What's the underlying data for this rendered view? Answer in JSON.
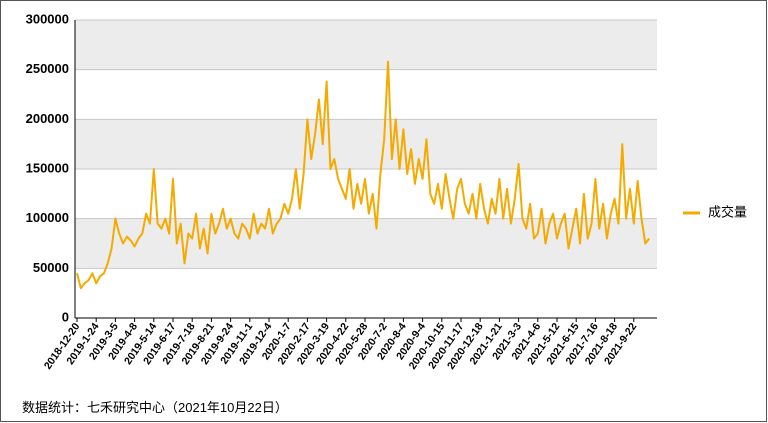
{
  "chart_data": {
    "type": "line",
    "categories": [
      "2018-12-20",
      null,
      null,
      null,
      null,
      "2019-1-24",
      null,
      null,
      null,
      null,
      "2019-3-5",
      null,
      null,
      null,
      null,
      "2019-4-8",
      null,
      null,
      null,
      null,
      "2019-5-14",
      null,
      null,
      null,
      null,
      "2019-6-17",
      null,
      null,
      null,
      null,
      "2019-7-18",
      null,
      null,
      null,
      null,
      "2019-8-21",
      null,
      null,
      null,
      null,
      "2019-9-24",
      null,
      null,
      null,
      null,
      "2019-11-1",
      null,
      null,
      null,
      null,
      "2019-12-4",
      null,
      null,
      null,
      null,
      "2020-1-7",
      null,
      null,
      null,
      null,
      "2020-2-17",
      null,
      null,
      null,
      null,
      "2020-3-19",
      null,
      null,
      null,
      null,
      "2020-4-22",
      null,
      null,
      null,
      null,
      "2020-5-28",
      null,
      null,
      null,
      null,
      "2020-7-2",
      null,
      null,
      null,
      null,
      "2020-8-4",
      null,
      null,
      null,
      null,
      "2020-9-4",
      null,
      null,
      null,
      null,
      "2020-10-15",
      null,
      null,
      null,
      null,
      "2020-11-17",
      null,
      null,
      null,
      null,
      "2020-12-18",
      null,
      null,
      null,
      null,
      "2021-1-21",
      null,
      null,
      null,
      null,
      "2021-3-3",
      null,
      null,
      null,
      null,
      "2021-4-6",
      null,
      null,
      null,
      null,
      "2021-5-12",
      null,
      null,
      null,
      null,
      "2021-6-15",
      null,
      null,
      null,
      null,
      "2021-7-16",
      null,
      null,
      null,
      null,
      "2021-8-18",
      null,
      null,
      null,
      null,
      "2021-9-22",
      null,
      null,
      null,
      null
    ],
    "series": [
      {
        "name": "成交量",
        "color": "#f5aa00",
        "values": [
          45000,
          30000,
          35000,
          38000,
          45000,
          35000,
          42000,
          45000,
          55000,
          70000,
          100000,
          85000,
          75000,
          82000,
          78000,
          72000,
          80000,
          85000,
          105000,
          95000,
          150000,
          95000,
          90000,
          100000,
          85000,
          140000,
          75000,
          95000,
          55000,
          85000,
          80000,
          105000,
          70000,
          90000,
          65000,
          105000,
          85000,
          95000,
          110000,
          90000,
          100000,
          85000,
          80000,
          95000,
          90000,
          80000,
          105000,
          85000,
          95000,
          90000,
          110000,
          85000,
          95000,
          100000,
          115000,
          105000,
          120000,
          150000,
          110000,
          145000,
          200000,
          160000,
          185000,
          220000,
          175000,
          238000,
          150000,
          160000,
          140000,
          130000,
          120000,
          150000,
          110000,
          135000,
          115000,
          140000,
          105000,
          125000,
          90000,
          145000,
          180000,
          258000,
          160000,
          200000,
          150000,
          190000,
          145000,
          170000,
          135000,
          160000,
          140000,
          180000,
          125000,
          115000,
          135000,
          110000,
          145000,
          120000,
          100000,
          130000,
          140000,
          115000,
          105000,
          125000,
          100000,
          135000,
          110000,
          95000,
          120000,
          105000,
          140000,
          100000,
          130000,
          95000,
          120000,
          155000,
          100000,
          90000,
          115000,
          80000,
          85000,
          110000,
          75000,
          95000,
          105000,
          80000,
          95000,
          105000,
          70000,
          90000,
          110000,
          75000,
          125000,
          80000,
          95000,
          140000,
          90000,
          115000,
          80000,
          105000,
          120000,
          95000,
          175000,
          100000,
          130000,
          95000,
          138000,
          100000,
          75000,
          80000
        ]
      }
    ],
    "ylim": [
      0,
      300000
    ],
    "yticks": [
      0,
      50000,
      100000,
      150000,
      200000,
      250000,
      300000
    ],
    "grid": true,
    "legend": "right",
    "source": "数据统计：七禾研究中心（2021年10月22日）"
  }
}
